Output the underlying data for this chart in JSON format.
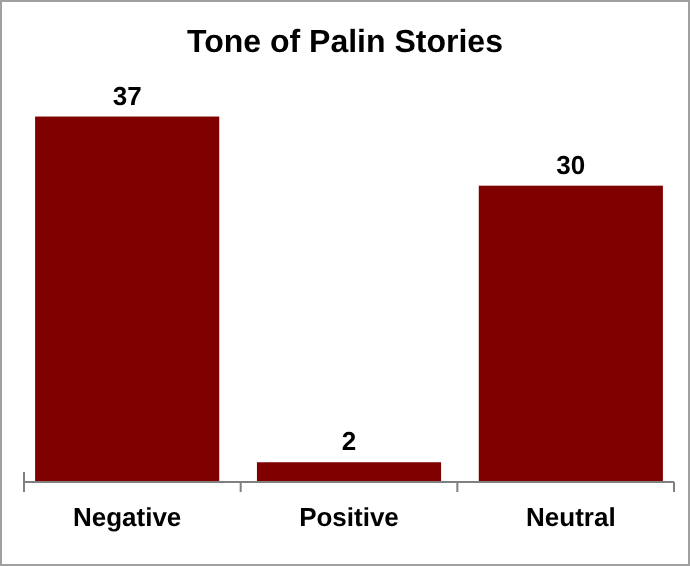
{
  "chart_data": {
    "type": "bar",
    "title": "Tone of Palin Stories",
    "categories": [
      "Negative",
      "Positive",
      "Neutral"
    ],
    "values": [
      37,
      2,
      30
    ],
    "color": "#800000",
    "data_labels": true
  }
}
